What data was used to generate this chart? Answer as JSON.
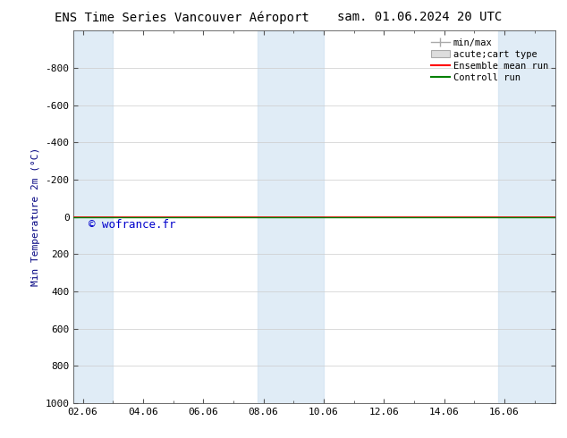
{
  "title_left": "ENS Time Series Vancouver Aéroport",
  "title_right": "sam. 01.06.2024 20 UTC",
  "ylabel": "Min Temperature 2m (°C)",
  "watermark": "© wofrance.fr",
  "xtick_labels": [
    "02.06",
    "04.06",
    "06.06",
    "08.06",
    "10.06",
    "12.06",
    "14.06",
    "16.06"
  ],
  "xtick_positions": [
    0,
    2,
    4,
    6,
    8,
    10,
    12,
    14
  ],
  "xlim": [
    -0.3,
    15.7
  ],
  "ylim_top": -1000,
  "ylim_bottom": 1000,
  "ytick_positions": [
    -800,
    -600,
    -400,
    -200,
    0,
    200,
    400,
    600,
    800,
    1000
  ],
  "ytick_labels": [
    "-800",
    "-600",
    "-400",
    "-200",
    "0",
    "200",
    "400",
    "600",
    "800",
    "1000"
  ],
  "y_line_value": 0,
  "green_line_color": "#008000",
  "red_line_color": "#ff0000",
  "shaded_bands": [
    {
      "x_start": -0.3,
      "x_end": 1.0
    },
    {
      "x_start": 5.8,
      "x_end": 8.0
    },
    {
      "x_start": 13.8,
      "x_end": 15.7
    }
  ],
  "band_color": "#cce0f0",
  "band_alpha": 0.6,
  "legend_items": [
    "min/max",
    "acute;cart type",
    "Ensemble mean run",
    "Controll run"
  ],
  "background_color": "#ffffff",
  "grid_color": "#cccccc",
  "title_fontsize": 10,
  "axis_label_fontsize": 8,
  "tick_fontsize": 8,
  "watermark_color": "#0000cc",
  "watermark_fontsize": 9,
  "legend_fontsize": 7.5,
  "spine_color": "#888888",
  "tick_color": "#555555"
}
